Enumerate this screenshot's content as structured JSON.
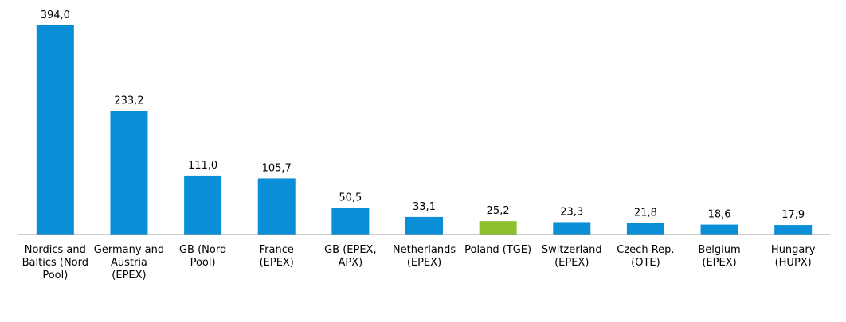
{
  "chart_data": {
    "type": "bar",
    "title": "",
    "xlabel": "",
    "ylabel": "",
    "ylim": [
      0,
      394
    ],
    "grid": false,
    "legend": "none",
    "categories": [
      "Nordics and Baltics (Nord Pool)",
      "Germany and Austria (EPEX)",
      "GB (Nord Pool)",
      "France (EPEX)",
      "GB (EPEX, APX)",
      "Netherlands (EPEX)",
      "Poland (TGE)",
      "Switzerland (EPEX)",
      "Czech Rep. (OTE)",
      "Belgium (EPEX)",
      "Hungary (HUPX)"
    ],
    "category_lines": [
      [
        "Nordics and",
        "Baltics (Nord",
        "Pool)"
      ],
      [
        "Germany and",
        "Austria",
        "(EPEX)"
      ],
      [
        "GB (Nord",
        "Pool)"
      ],
      [
        "France",
        "(EPEX)"
      ],
      [
        "GB (EPEX,",
        "APX)"
      ],
      [
        "Netherlands",
        "(EPEX)"
      ],
      [
        "Poland (TGE)"
      ],
      [
        "Switzerland",
        "(EPEX)"
      ],
      [
        "Czech Rep.",
        "(OTE)"
      ],
      [
        "Belgium",
        "(EPEX)"
      ],
      [
        "Hungary",
        "(HUPX)"
      ]
    ],
    "values": [
      394.0,
      233.2,
      111.0,
      105.7,
      50.5,
      33.1,
      25.2,
      23.3,
      21.8,
      18.6,
      17.9
    ],
    "value_labels": [
      "394,0",
      "233,2",
      "111,0",
      "105,7",
      "50,5",
      "33,1",
      "25,2",
      "23,3",
      "21,8",
      "18,6",
      "17,9"
    ],
    "colors": {
      "default_bar": "#0a8ed8",
      "highlight_bar": "#8cc02c",
      "axis": "#999999"
    },
    "highlight_index": 6
  }
}
